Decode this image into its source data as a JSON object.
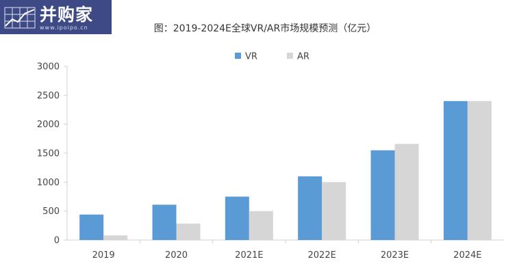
{
  "logo": {
    "brand": "并购家",
    "url": "www.ipoipo.cn",
    "icon": "chart-grid-icon",
    "color": "#3d4a86"
  },
  "chart_data": {
    "type": "bar",
    "title": "图：2019-2024E全球VR/AR市场规模预测（亿元）",
    "xlabel": "",
    "ylabel": "",
    "categories": [
      "2019",
      "2020",
      "2021E",
      "2022E",
      "2023E",
      "2024E"
    ],
    "ylim": [
      0,
      3000
    ],
    "yticks": [
      0,
      500,
      1000,
      1500,
      2000,
      2500,
      3000
    ],
    "grid": false,
    "legend_position": "top-center",
    "series": [
      {
        "name": "VR",
        "color": "#5b9bd5",
        "values": [
          440,
          610,
          750,
          1100,
          1550,
          2400
        ]
      },
      {
        "name": "AR",
        "color": "#d6d6d6",
        "values": [
          80,
          285,
          500,
          1000,
          1660,
          2400
        ]
      }
    ]
  }
}
